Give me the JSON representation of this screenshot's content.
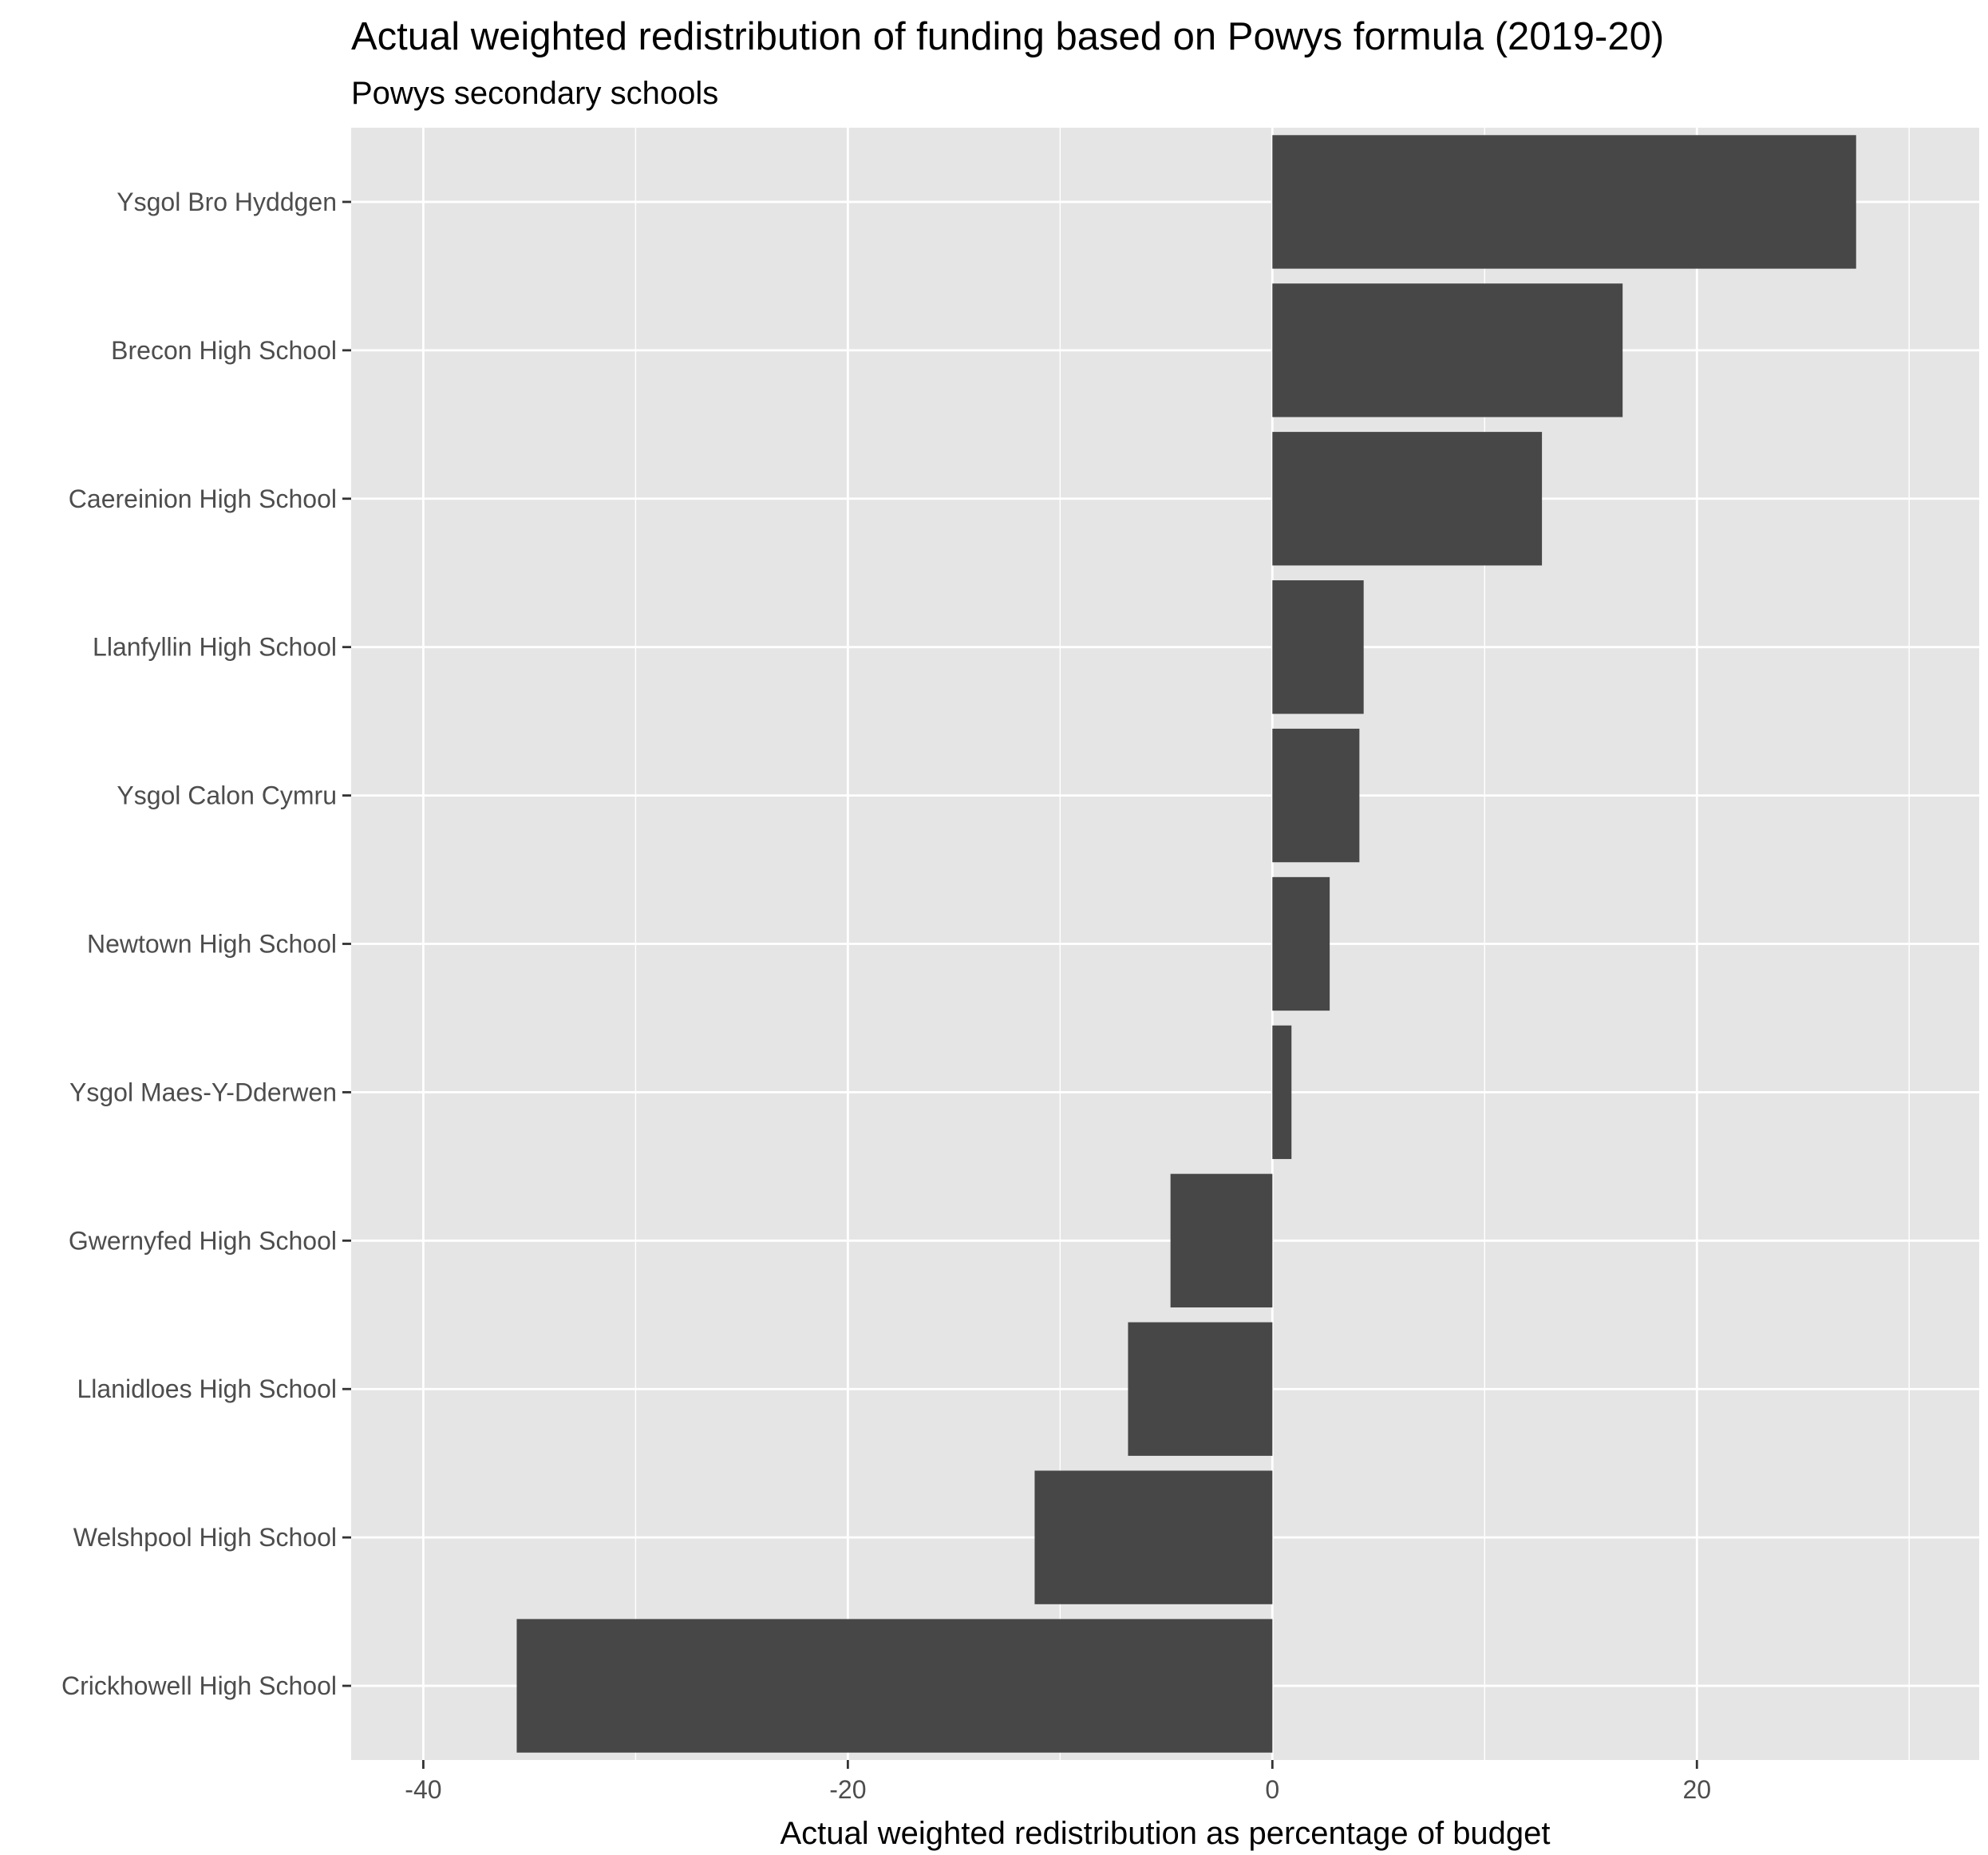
{
  "chart_data": {
    "type": "bar",
    "orientation": "horizontal",
    "title": "Actual weighted redistribution of funding based on Powys formula (2019-20)",
    "subtitle": "Powys secondary schools",
    "xlabel": "Actual weighted redistribution as percentage of budget",
    "ylabel": "",
    "xlim": [
      -43.4,
      33.3
    ],
    "xticks": [
      -40,
      -20,
      0,
      20
    ],
    "grid": true,
    "legend": "none",
    "colors": {
      "bar": "#474747",
      "panel": "#e5e5e5",
      "grid": "#ffffff",
      "tick_text": "#4d4d4d"
    },
    "categories": [
      "Ysgol Bro Hyddgen",
      "Brecon High School",
      "Caereinion High School",
      "Llanfyllin High School",
      "Ysgol Calon Cymru",
      "Newtown High School",
      "Ysgol Maes-Y-Dderwen",
      "Gwernyfed High School",
      "Llanidloes High School",
      "Welshpool High School",
      "Crickhowell High School"
    ],
    "values": [
      27.5,
      16.5,
      12.7,
      4.3,
      4.1,
      2.7,
      0.9,
      -4.8,
      -6.8,
      -11.2,
      -35.6
    ]
  }
}
